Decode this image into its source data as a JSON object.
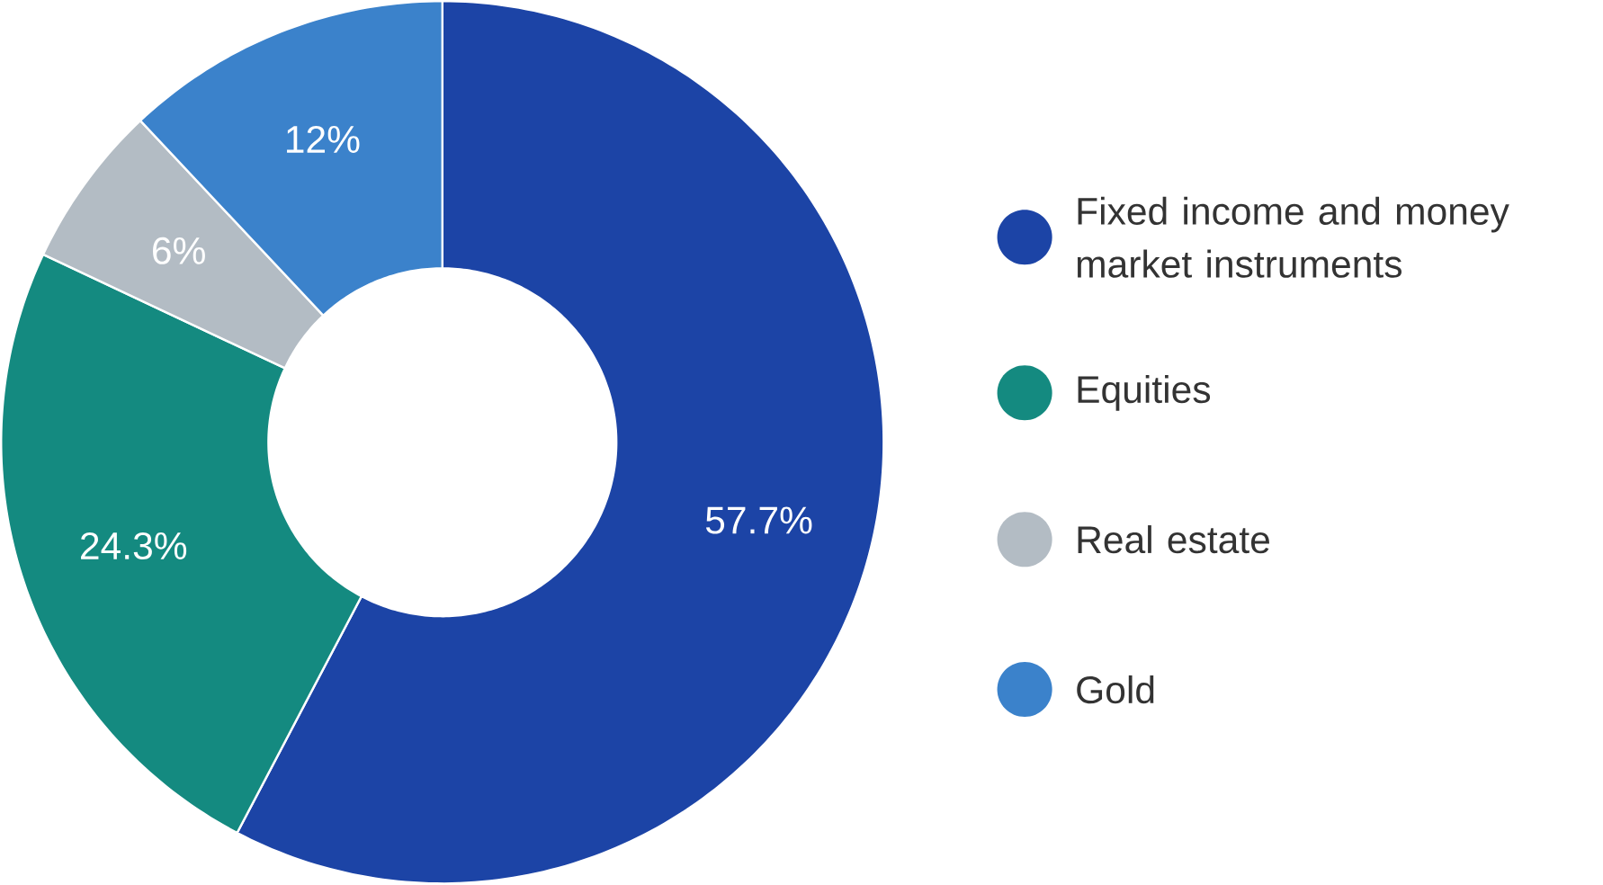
{
  "chart_data": {
    "type": "donut",
    "categories": [
      "Fixed income and money market instruments",
      "Equities",
      "Real estate",
      "Gold"
    ],
    "values": [
      57.7,
      24.3,
      6,
      12
    ],
    "value_labels": [
      "57.7%",
      "24.3%",
      "6%",
      "12%"
    ],
    "colors": [
      "#1c44a6",
      "#148a80",
      "#b3bcc4",
      "#3b82cb"
    ],
    "legend": "right"
  }
}
